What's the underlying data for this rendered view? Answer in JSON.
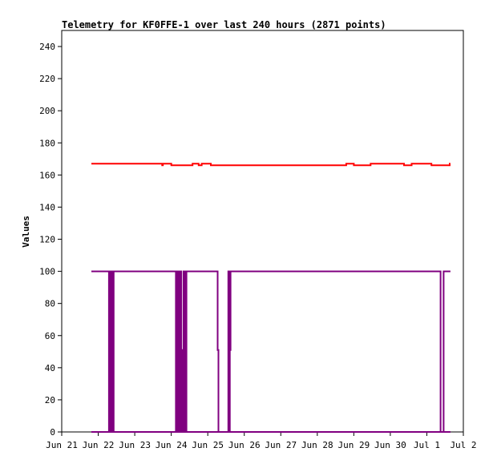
{
  "chart_data": {
    "type": "line",
    "title": "Telemetry for KF0FFE-1 over last 240 hours (2871 points)",
    "xlabel": "",
    "ylabel": "Values",
    "ylim": [
      0,
      250
    ],
    "yticks": [
      0,
      20,
      40,
      60,
      80,
      100,
      120,
      140,
      160,
      180,
      200,
      220,
      240
    ],
    "xlim": [
      "2023-06-21T00:00",
      "2023-07-02T00:00"
    ],
    "xticks": [
      "Jun 21",
      "Jun 22",
      "Jun 23",
      "Jun 24",
      "Jun 25",
      "Jun 26",
      "Jun 27",
      "Jun 28",
      "Jun 29",
      "Jun 30",
      "Jul 1",
      "Jul 2"
    ],
    "grid": false,
    "series": [
      {
        "color": "#ff0000",
        "points": [
          [
            "2023-06-21T19:30",
            167
          ],
          [
            "2023-06-23T18:00",
            167
          ],
          [
            "2023-06-23T18:01",
            166
          ],
          [
            "2023-06-23T18:30",
            167
          ],
          [
            "2023-06-24T00:00",
            167
          ],
          [
            "2023-06-24T00:01",
            166
          ],
          [
            "2023-06-24T14:00",
            166
          ],
          [
            "2023-06-24T14:01",
            167
          ],
          [
            "2023-06-24T18:00",
            167
          ],
          [
            "2023-06-24T18:01",
            166
          ],
          [
            "2023-06-24T20:00",
            167
          ],
          [
            "2023-06-25T02:00",
            167
          ],
          [
            "2023-06-25T02:01",
            166
          ],
          [
            "2023-06-28T19:00",
            166
          ],
          [
            "2023-06-28T19:01",
            167
          ],
          [
            "2023-06-29T00:00",
            167
          ],
          [
            "2023-06-29T00:01",
            166
          ],
          [
            "2023-06-29T11:00",
            166
          ],
          [
            "2023-06-29T11:01",
            167
          ],
          [
            "2023-06-30T09:00",
            167
          ],
          [
            "2023-06-30T09:01",
            166
          ],
          [
            "2023-06-30T14:00",
            167
          ],
          [
            "2023-07-01T03:00",
            167
          ],
          [
            "2023-07-01T03:01",
            166
          ],
          [
            "2023-07-01T15:00",
            166
          ],
          [
            "2023-07-01T15:01",
            167
          ],
          [
            "2023-07-01T15:30",
            167
          ]
        ]
      },
      {
        "color": "#800080",
        "points": [
          [
            "2023-06-21T19:30",
            100
          ],
          [
            "2023-06-22T07:00",
            100
          ],
          [
            "2023-06-22T07:01",
            0
          ],
          [
            "2023-06-22T07:10",
            100
          ],
          [
            "2023-06-22T07:20",
            0
          ],
          [
            "2023-06-22T07:30",
            100
          ],
          [
            "2023-06-22T07:40",
            0
          ],
          [
            "2023-06-22T07:50",
            100
          ],
          [
            "2023-06-22T08:00",
            0
          ],
          [
            "2023-06-22T08:10",
            100
          ],
          [
            "2023-06-22T08:20",
            0
          ],
          [
            "2023-06-22T08:30",
            100
          ],
          [
            "2023-06-22T08:40",
            0
          ],
          [
            "2023-06-22T08:50",
            100
          ],
          [
            "2023-06-22T09:00",
            0
          ],
          [
            "2023-06-22T09:10",
            100
          ],
          [
            "2023-06-22T09:20",
            0
          ],
          [
            "2023-06-22T09:30",
            100
          ],
          [
            "2023-06-22T09:40",
            0
          ],
          [
            "2023-06-22T09:50",
            100
          ],
          [
            "2023-06-22T10:00",
            0
          ],
          [
            "2023-06-22T10:10",
            100
          ],
          [
            "2023-06-24T03:00",
            100
          ],
          [
            "2023-06-24T03:01",
            0
          ],
          [
            "2023-06-24T03:30",
            100
          ],
          [
            "2023-06-24T04:00",
            0
          ],
          [
            "2023-06-24T04:30",
            100
          ],
          [
            "2023-06-24T05:00",
            0
          ],
          [
            "2023-06-24T05:30",
            100
          ],
          [
            "2023-06-24T06:30",
            100
          ],
          [
            "2023-06-24T06:31",
            0
          ],
          [
            "2023-06-24T07:00",
            51
          ],
          [
            "2023-06-24T07:30",
            0
          ],
          [
            "2023-06-24T08:00",
            100
          ],
          [
            "2023-06-24T08:30",
            0
          ],
          [
            "2023-06-24T09:00",
            100
          ],
          [
            "2023-06-24T09:30",
            0
          ],
          [
            "2023-06-24T10:00",
            100
          ],
          [
            "2023-06-25T06:00",
            100
          ],
          [
            "2023-06-25T06:30",
            51
          ],
          [
            "2023-06-25T07:00",
            0
          ],
          [
            "2023-06-25T13:00",
            0
          ],
          [
            "2023-06-25T13:30",
            100
          ],
          [
            "2023-06-25T14:00",
            0
          ],
          [
            "2023-06-25T14:30",
            51
          ],
          [
            "2023-06-25T15:00",
            100
          ],
          [
            "2023-07-01T09:00",
            100
          ],
          [
            "2023-07-01T09:01",
            0
          ],
          [
            "2023-07-01T11:00",
            0
          ],
          [
            "2023-07-01T11:01",
            100
          ],
          [
            "2023-07-01T15:30",
            100
          ]
        ]
      },
      {
        "color": "#800080",
        "points": [
          [
            "2023-06-21T19:30",
            0
          ],
          [
            "2023-07-01T15:30",
            0
          ]
        ]
      }
    ]
  }
}
